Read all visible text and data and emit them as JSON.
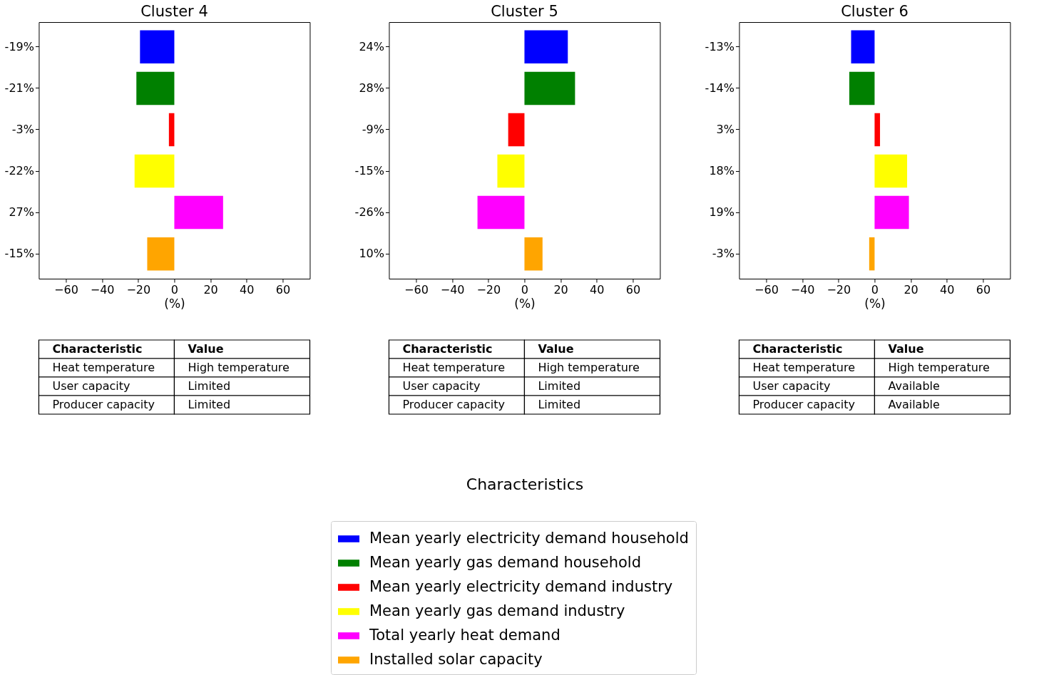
{
  "chart_data": [
    {
      "type": "bar",
      "orientation": "horizontal",
      "title": "Cluster 4",
      "xlabel": "(%)",
      "categories": [
        "-19%",
        "-21%",
        "-3%",
        "-22%",
        "27%",
        "-15%"
      ],
      "xlim": [
        -75,
        75
      ],
      "xticks": [
        {
          "value": -60,
          "label": "−60"
        },
        {
          "value": -40,
          "label": "−40"
        },
        {
          "value": -20,
          "label": "−20"
        },
        0,
        20,
        40,
        60
      ],
      "grid": false,
      "legend": "bottom",
      "legend_title": "Characteristics",
      "series": [
        {
          "name": "Mean yearly electricity demand household",
          "color": "#0000ff",
          "values": [
            -19,
            null,
            null,
            null,
            null,
            null
          ]
        },
        {
          "name": "Mean yearly gas demand household",
          "color": "#008000",
          "values": [
            null,
            -21,
            null,
            null,
            null,
            null
          ]
        },
        {
          "name": "Mean yearly electricity demand industry",
          "color": "#ff0000",
          "values": [
            null,
            null,
            -3,
            null,
            null,
            null
          ]
        },
        {
          "name": "Mean yearly gas demand industry",
          "color": "#ffff00",
          "values": [
            null,
            null,
            null,
            -22,
            null,
            null
          ]
        },
        {
          "name": "Total yearly heat demand",
          "color": "#ff00ff",
          "values": [
            null,
            null,
            null,
            null,
            27,
            null
          ]
        },
        {
          "name": "Installed solar capacity",
          "color": "#ffa500",
          "values": [
            null,
            null,
            null,
            null,
            null,
            -15
          ]
        }
      ],
      "annotations": [
        "Characteristic",
        "Value",
        "Heat temperature",
        "High temperature",
        "User capacity",
        "Limited",
        "Producer capacity",
        "Limited"
      ]
    },
    {
      "type": "bar",
      "orientation": "horizontal",
      "title": "Cluster 5",
      "xlabel": "(%)",
      "categories": [
        "24%",
        "28%",
        "-9%",
        "-15%",
        "-26%",
        "10%"
      ],
      "xlim": [
        -75,
        75
      ],
      "xticks": [
        {
          "value": -60,
          "label": "−60"
        },
        {
          "value": -40,
          "label": "−40"
        },
        {
          "value": -20,
          "label": "−20"
        },
        0,
        20,
        40,
        60
      ],
      "grid": false,
      "series": [
        {
          "color": "#0000ff",
          "values": [
            24,
            null,
            null,
            null,
            null,
            null
          ]
        },
        {
          "color": "#008000",
          "values": [
            null,
            28,
            null,
            null,
            null,
            null
          ]
        },
        {
          "color": "#ff0000",
          "values": [
            null,
            null,
            -9,
            null,
            null,
            null
          ]
        },
        {
          "color": "#ffff00",
          "values": [
            null,
            null,
            null,
            -15,
            null,
            null
          ]
        },
        {
          "color": "#ff00ff",
          "values": [
            null,
            null,
            null,
            null,
            -26,
            null
          ]
        },
        {
          "color": "#ffa500",
          "values": [
            null,
            null,
            null,
            null,
            null,
            10
          ]
        }
      ],
      "annotations": [
        "Characteristic",
        "Value",
        "Heat temperature",
        "High temperature",
        "User capacity",
        "Limited",
        "Producer capacity",
        "Limited"
      ]
    },
    {
      "type": "bar",
      "orientation": "horizontal",
      "title": "Cluster 6",
      "xlabel": "(%)",
      "categories": [
        "-13%",
        "-14%",
        "3%",
        "18%",
        "19%",
        "-3%"
      ],
      "xlim": [
        -75,
        75
      ],
      "xticks": [
        {
          "value": -60,
          "label": "−60"
        },
        {
          "value": -40,
          "label": "−40"
        },
        {
          "value": -20,
          "label": "−20"
        },
        0,
        20,
        40,
        60
      ],
      "grid": false,
      "series": [
        {
          "color": "#0000ff",
          "values": [
            -13,
            null,
            null,
            null,
            null,
            null
          ]
        },
        {
          "color": "#008000",
          "values": [
            null,
            -14,
            null,
            null,
            null,
            null
          ]
        },
        {
          "color": "#ff0000",
          "values": [
            null,
            null,
            3,
            null,
            null,
            null
          ]
        },
        {
          "color": "#ffff00",
          "values": [
            null,
            null,
            null,
            18,
            null,
            null
          ]
        },
        {
          "color": "#ff00ff",
          "values": [
            null,
            null,
            null,
            null,
            19,
            null
          ]
        },
        {
          "color": "#ffa500",
          "values": [
            null,
            null,
            null,
            null,
            null,
            -3
          ]
        }
      ],
      "annotations": [
        "Characteristic",
        "Value",
        "Heat temperature",
        "High temperature",
        "User capacity",
        "Available",
        "Producer capacity",
        "Available"
      ]
    }
  ]
}
